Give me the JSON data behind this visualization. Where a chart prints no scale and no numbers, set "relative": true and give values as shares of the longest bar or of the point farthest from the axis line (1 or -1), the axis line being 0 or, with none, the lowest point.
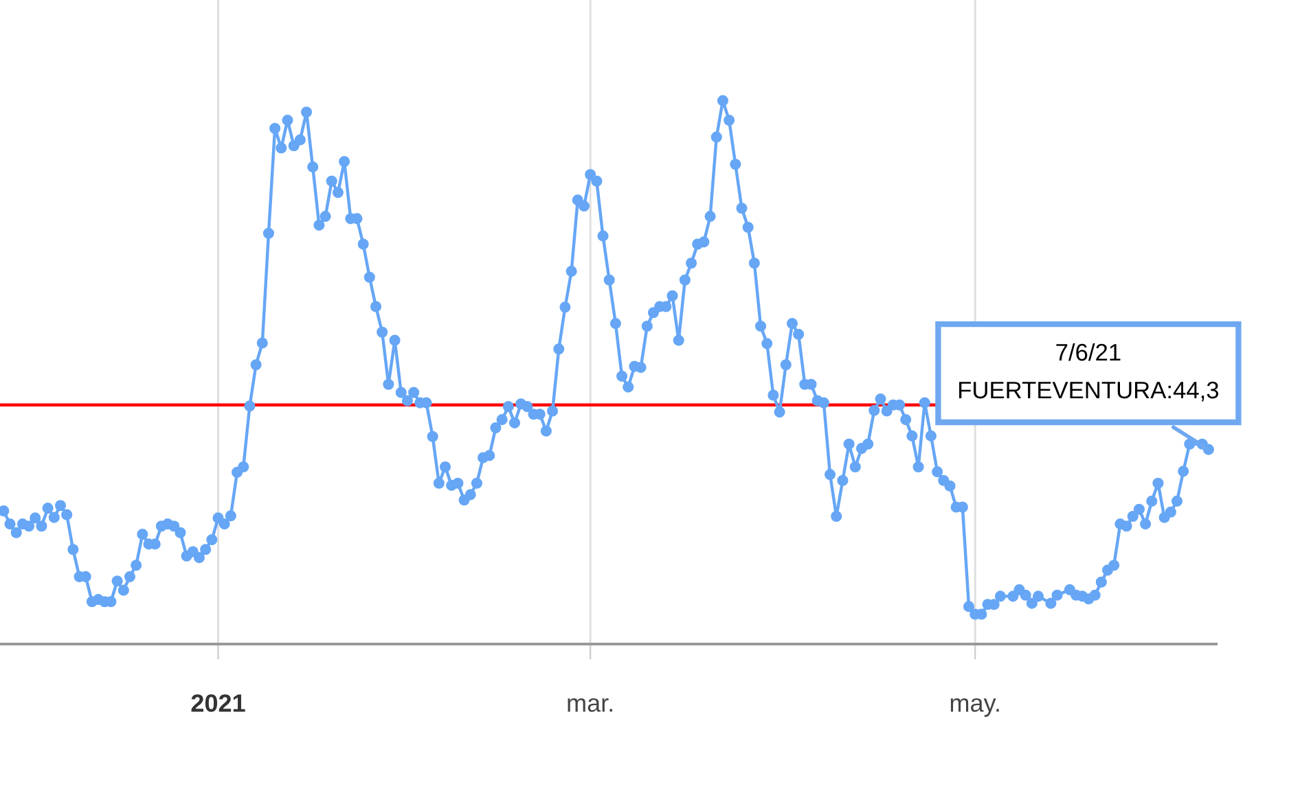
{
  "chart_data": {
    "type": "line",
    "relative": true,
    "color": "#66a6f5",
    "marker": "circle",
    "line_style": "solid",
    "grid": "x",
    "legend": false,
    "x": [
      "2020-11-28",
      "2020-11-29",
      "2020-11-30",
      "2020-12-01",
      "2020-12-02",
      "2020-12-03",
      "2020-12-04",
      "2020-12-05",
      "2020-12-06",
      "2020-12-07",
      "2020-12-08",
      "2020-12-09",
      "2020-12-10",
      "2020-12-11",
      "2020-12-12",
      "2020-12-13",
      "2020-12-14",
      "2020-12-15",
      "2020-12-16",
      "2020-12-17",
      "2020-12-18",
      "2020-12-19",
      "2020-12-20",
      "2020-12-21",
      "2020-12-22",
      "2020-12-23",
      "2020-12-24",
      "2020-12-25",
      "2020-12-26",
      "2020-12-27",
      "2020-12-28",
      "2020-12-29",
      "2020-12-30",
      "2020-12-31",
      "2021-01-01",
      "2021-01-02",
      "2021-01-03",
      "2021-01-04",
      "2021-01-05",
      "2021-01-06",
      "2021-01-07",
      "2021-01-08",
      "2021-01-09",
      "2021-01-10",
      "2021-01-11",
      "2021-01-12",
      "2021-01-13",
      "2021-01-14",
      "2021-01-15",
      "2021-01-16",
      "2021-01-17",
      "2021-01-18",
      "2021-01-19",
      "2021-01-20",
      "2021-01-21",
      "2021-01-22",
      "2021-01-23",
      "2021-01-24",
      "2021-01-25",
      "2021-01-26",
      "2021-01-27",
      "2021-01-28",
      "2021-01-29",
      "2021-01-30",
      "2021-01-31",
      "2021-02-01",
      "2021-02-02",
      "2021-02-03",
      "2021-02-04",
      "2021-02-05",
      "2021-02-06",
      "2021-02-07",
      "2021-02-08",
      "2021-02-09",
      "2021-02-10",
      "2021-02-11",
      "2021-02-12",
      "2021-02-13",
      "2021-02-14",
      "2021-02-15",
      "2021-02-16",
      "2021-02-17",
      "2021-02-18",
      "2021-02-19",
      "2021-02-20",
      "2021-02-21",
      "2021-02-22",
      "2021-02-23",
      "2021-02-24",
      "2021-02-25",
      "2021-02-26",
      "2021-02-27",
      "2021-02-28",
      "2021-03-01",
      "2021-03-02",
      "2021-03-03",
      "2021-03-04",
      "2021-03-05",
      "2021-03-06",
      "2021-03-07",
      "2021-03-08",
      "2021-03-09",
      "2021-03-10",
      "2021-03-11",
      "2021-03-12",
      "2021-03-13",
      "2021-03-14",
      "2021-03-15",
      "2021-03-16",
      "2021-03-17",
      "2021-03-18",
      "2021-03-19",
      "2021-03-20",
      "2021-03-21",
      "2021-03-22",
      "2021-03-23",
      "2021-03-24",
      "2021-03-25",
      "2021-03-26",
      "2021-03-27",
      "2021-03-28",
      "2021-03-29",
      "2021-03-30",
      "2021-03-31",
      "2021-04-01",
      "2021-04-02",
      "2021-04-03",
      "2021-04-04",
      "2021-04-05",
      "2021-04-06",
      "2021-04-07",
      "2021-04-08",
      "2021-04-09",
      "2021-04-10",
      "2021-04-11",
      "2021-04-12",
      "2021-04-13",
      "2021-04-14",
      "2021-04-15",
      "2021-04-16",
      "2021-04-17",
      "2021-04-18",
      "2021-04-19",
      "2021-04-20",
      "2021-04-21",
      "2021-04-22",
      "2021-04-23",
      "2021-04-24",
      "2021-04-25",
      "2021-04-26",
      "2021-04-27",
      "2021-04-28",
      "2021-04-29",
      "2021-04-30",
      "2021-05-01",
      "2021-05-02",
      "2021-05-03",
      "2021-05-04",
      "2021-05-05",
      "2021-05-07",
      "2021-05-08",
      "2021-05-09",
      "2021-05-10",
      "2021-05-11",
      "2021-05-13",
      "2021-05-14",
      "2021-05-16",
      "2021-05-17",
      "2021-05-18",
      "2021-05-19",
      "2021-05-20",
      "2021-05-21",
      "2021-05-22",
      "2021-05-23",
      "2021-05-24",
      "2021-05-25",
      "2021-05-26",
      "2021-05-27",
      "2021-05-28",
      "2021-05-29",
      "2021-05-30",
      "2021-05-31",
      "2021-06-01",
      "2021-06-02",
      "2021-06-03",
      "2021-06-04",
      "2021-06-06",
      "2021-06-07"
    ],
    "values": [
      0.245,
      0.221,
      0.205,
      0.221,
      0.217,
      0.232,
      0.217,
      0.25,
      0.233,
      0.255,
      0.238,
      0.174,
      0.124,
      0.124,
      0.078,
      0.082,
      0.078,
      0.078,
      0.116,
      0.099,
      0.124,
      0.145,
      0.202,
      0.184,
      0.184,
      0.217,
      0.221,
      0.217,
      0.205,
      0.162,
      0.17,
      0.159,
      0.174,
      0.192,
      0.232,
      0.221,
      0.236,
      0.316,
      0.326,
      0.438,
      0.514,
      0.554,
      0.756,
      0.949,
      0.913,
      0.964,
      0.917,
      0.928,
      0.979,
      0.878,
      0.771,
      0.787,
      0.852,
      0.831,
      0.888,
      0.783,
      0.783,
      0.736,
      0.675,
      0.621,
      0.574,
      0.478,
      0.559,
      0.463,
      0.448,
      0.463,
      0.444,
      0.444,
      0.382,
      0.296,
      0.326,
      0.292,
      0.296,
      0.265,
      0.275,
      0.296,
      0.343,
      0.347,
      0.398,
      0.413,
      0.437,
      0.407,
      0.442,
      0.437,
      0.423,
      0.423,
      0.392,
      0.429,
      0.543,
      0.62,
      0.686,
      0.817,
      0.806,
      0.864,
      0.852,
      0.751,
      0.67,
      0.59,
      0.493,
      0.473,
      0.511,
      0.509,
      0.585,
      0.61,
      0.621,
      0.621,
      0.641,
      0.559,
      0.67,
      0.701,
      0.736,
      0.74,
      0.787,
      0.933,
      1.0,
      0.964,
      0.883,
      0.802,
      0.767,
      0.701,
      0.585,
      0.553,
      0.458,
      0.427,
      0.514,
      0.59,
      0.57,
      0.478,
      0.478,
      0.448,
      0.444,
      0.312,
      0.235,
      0.301,
      0.368,
      0.326,
      0.36,
      0.368,
      0.43,
      0.451,
      0.429,
      0.44,
      0.44,
      0.413,
      0.383,
      0.326,
      0.444,
      0.383,
      0.317,
      0.301,
      0.291,
      0.252,
      0.252,
      0.069,
      0.055,
      0.055,
      0.073,
      0.073,
      0.088,
      0.088,
      0.1,
      0.09,
      0.075,
      0.088,
      0.075,
      0.09,
      0.1,
      0.09,
      0.088,
      0.083,
      0.09,
      0.114,
      0.136,
      0.145,
      0.221,
      0.217,
      0.235,
      0.248,
      0.221,
      0.263,
      0.296,
      0.233,
      0.243,
      0.263,
      0.318,
      0.368,
      0.368,
      0.358
    ],
    "xlim": [
      "2020-11-27T10:00",
      "2021-06-08T05:00"
    ],
    "xticks": [
      {
        "value": "2021-01-01",
        "label": "2021"
      },
      {
        "value": "2021-03-01",
        "label": "mar."
      },
      {
        "value": "2021-05-01",
        "label": "may."
      }
    ],
    "ref_lines": [
      {
        "axis": "y",
        "value": 0.44,
        "color": "#ff0000",
        "line_style": "solid"
      }
    ],
    "annotations": [
      {
        "text": "7/6/21\nFUERTEVENTURA:44,3",
        "x": "2021-06-07",
        "y": 0.358
      }
    ]
  }
}
